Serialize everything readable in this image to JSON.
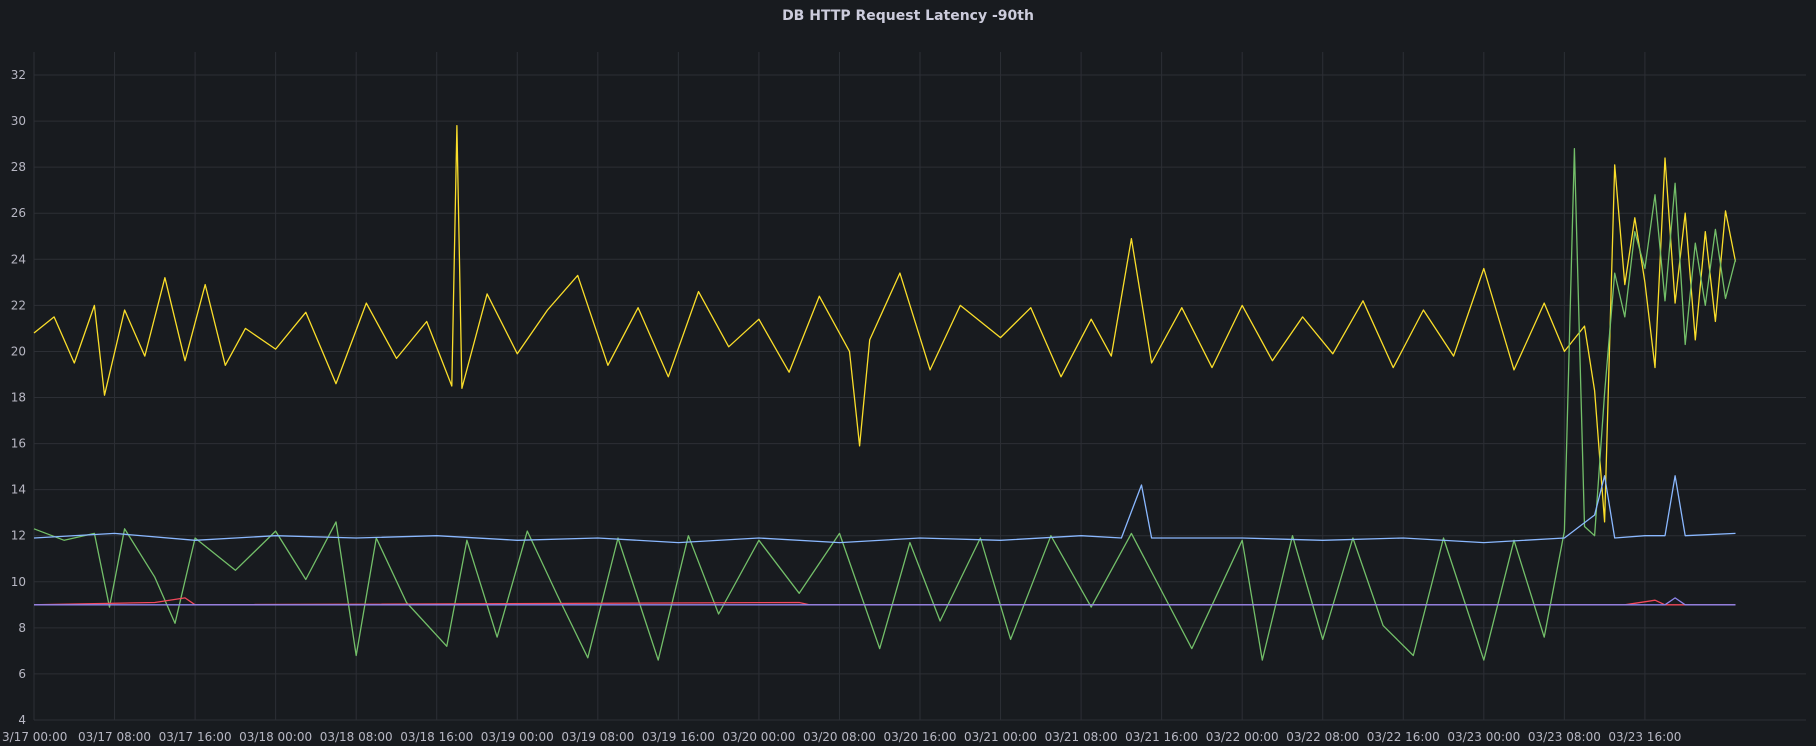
{
  "chart_data": {
    "type": "line",
    "title": "DB HTTP Request Latency -90th",
    "xlabel": "",
    "ylabel": "",
    "ylim": [
      4,
      33
    ],
    "yticks": [
      4,
      6,
      8,
      10,
      12,
      14,
      16,
      18,
      20,
      22,
      24,
      26,
      28,
      30,
      32
    ],
    "xlim": [
      "2024-03-17 00:00",
      "2024-03-24 08:00"
    ],
    "xticks": [
      {
        "t": "2024-03-17 00:00",
        "label": "3/17 00:00"
      },
      {
        "t": "2024-03-17 08:00",
        "label": "03/17 08:00"
      },
      {
        "t": "2024-03-17 16:00",
        "label": "03/17 16:00"
      },
      {
        "t": "2024-03-18 00:00",
        "label": "03/18 00:00"
      },
      {
        "t": "2024-03-18 08:00",
        "label": "03/18 08:00"
      },
      {
        "t": "2024-03-18 16:00",
        "label": "03/18 16:00"
      },
      {
        "t": "2024-03-19 00:00",
        "label": "03/19 00:00"
      },
      {
        "t": "2024-03-19 08:00",
        "label": "03/19 08:00"
      },
      {
        "t": "2024-03-19 16:00",
        "label": "03/19 16:00"
      },
      {
        "t": "2024-03-20 00:00",
        "label": "03/20 00:00"
      },
      {
        "t": "2024-03-20 08:00",
        "label": "03/20 08:00"
      },
      {
        "t": "2024-03-20 16:00",
        "label": "03/20 16:00"
      },
      {
        "t": "2024-03-21 00:00",
        "label": "03/21 00:00"
      },
      {
        "t": "2024-03-21 08:00",
        "label": "03/21 08:00"
      },
      {
        "t": "2024-03-21 16:00",
        "label": "03/21 16:00"
      },
      {
        "t": "2024-03-22 00:00",
        "label": "03/22 00:00"
      },
      {
        "t": "2024-03-22 08:00",
        "label": "03/22 08:00"
      },
      {
        "t": "2024-03-22 16:00",
        "label": "03/22 16:00"
      },
      {
        "t": "2024-03-23 00:00",
        "label": "03/23 00:00"
      },
      {
        "t": "2024-03-23 08:00",
        "label": "03/23 08:00"
      },
      {
        "t": "2024-03-23 16:00",
        "label": "03/23 16:00"
      }
    ],
    "grid": true,
    "legend": "none",
    "series": [
      {
        "color": "#fade2a",
        "points": [
          [
            "2024-03-17 00:00",
            20.8
          ],
          [
            "2024-03-17 02:00",
            21.5
          ],
          [
            "2024-03-17 04:00",
            19.5
          ],
          [
            "2024-03-17 06:00",
            22.0
          ],
          [
            "2024-03-17 07:00",
            18.1
          ],
          [
            "2024-03-17 09:00",
            21.8
          ],
          [
            "2024-03-17 11:00",
            19.8
          ],
          [
            "2024-03-17 13:00",
            23.2
          ],
          [
            "2024-03-17 15:00",
            19.6
          ],
          [
            "2024-03-17 17:00",
            22.9
          ],
          [
            "2024-03-17 19:00",
            19.4
          ],
          [
            "2024-03-17 21:00",
            21.0
          ],
          [
            "2024-03-18 00:00",
            20.1
          ],
          [
            "2024-03-18 03:00",
            21.7
          ],
          [
            "2024-03-18 06:00",
            18.6
          ],
          [
            "2024-03-18 09:00",
            22.1
          ],
          [
            "2024-03-18 12:00",
            19.7
          ],
          [
            "2024-03-18 15:00",
            21.3
          ],
          [
            "2024-03-18 17:30",
            18.5
          ],
          [
            "2024-03-18 18:00",
            29.8
          ],
          [
            "2024-03-18 18:30",
            18.4
          ],
          [
            "2024-03-18 21:00",
            22.5
          ],
          [
            "2024-03-19 00:00",
            19.9
          ],
          [
            "2024-03-19 03:00",
            21.8
          ],
          [
            "2024-03-19 06:00",
            23.3
          ],
          [
            "2024-03-19 09:00",
            19.4
          ],
          [
            "2024-03-19 12:00",
            21.9
          ],
          [
            "2024-03-19 15:00",
            18.9
          ],
          [
            "2024-03-19 18:00",
            22.6
          ],
          [
            "2024-03-19 21:00",
            20.2
          ],
          [
            "2024-03-20 00:00",
            21.4
          ],
          [
            "2024-03-20 03:00",
            19.1
          ],
          [
            "2024-03-20 06:00",
            22.4
          ],
          [
            "2024-03-20 09:00",
            20.0
          ],
          [
            "2024-03-20 10:00",
            15.9
          ],
          [
            "2024-03-20 11:00",
            20.5
          ],
          [
            "2024-03-20 14:00",
            23.4
          ],
          [
            "2024-03-20 17:00",
            19.2
          ],
          [
            "2024-03-20 20:00",
            22.0
          ],
          [
            "2024-03-21 00:00",
            20.6
          ],
          [
            "2024-03-21 03:00",
            21.9
          ],
          [
            "2024-03-21 06:00",
            18.9
          ],
          [
            "2024-03-21 09:00",
            21.4
          ],
          [
            "2024-03-21 11:00",
            19.8
          ],
          [
            "2024-03-21 13:00",
            24.9
          ],
          [
            "2024-03-21 15:00",
            19.5
          ],
          [
            "2024-03-21 18:00",
            21.9
          ],
          [
            "2024-03-21 21:00",
            19.3
          ],
          [
            "2024-03-22 00:00",
            22.0
          ],
          [
            "2024-03-22 03:00",
            19.6
          ],
          [
            "2024-03-22 06:00",
            21.5
          ],
          [
            "2024-03-22 09:00",
            19.9
          ],
          [
            "2024-03-22 12:00",
            22.2
          ],
          [
            "2024-03-22 15:00",
            19.3
          ],
          [
            "2024-03-22 18:00",
            21.8
          ],
          [
            "2024-03-22 21:00",
            19.8
          ],
          [
            "2024-03-23 00:00",
            23.6
          ],
          [
            "2024-03-23 03:00",
            19.2
          ],
          [
            "2024-03-23 06:00",
            22.1
          ],
          [
            "2024-03-23 08:00",
            20.0
          ],
          [
            "2024-03-23 10:00",
            21.1
          ],
          [
            "2024-03-23 11:00",
            18.3
          ],
          [
            "2024-03-23 12:00",
            12.6
          ],
          [
            "2024-03-23 13:00",
            28.1
          ],
          [
            "2024-03-23 14:00",
            22.9
          ],
          [
            "2024-03-23 15:00",
            25.8
          ],
          [
            "2024-03-23 16:00",
            23.0
          ],
          [
            "2024-03-23 17:00",
            19.3
          ],
          [
            "2024-03-23 18:00",
            28.4
          ],
          [
            "2024-03-23 19:00",
            22.1
          ],
          [
            "2024-03-23 20:00",
            26.0
          ],
          [
            "2024-03-23 21:00",
            20.5
          ],
          [
            "2024-03-23 22:00",
            25.2
          ],
          [
            "2024-03-23 23:00",
            21.3
          ],
          [
            "2024-03-24 00:00",
            26.1
          ],
          [
            "2024-03-24 01:00",
            23.9
          ]
        ]
      },
      {
        "color": "#73bf69",
        "points": [
          [
            "2024-03-17 00:00",
            12.3
          ],
          [
            "2024-03-17 03:00",
            11.8
          ],
          [
            "2024-03-17 06:00",
            12.1
          ],
          [
            "2024-03-17 07:30",
            8.9
          ],
          [
            "2024-03-17 09:00",
            12.3
          ],
          [
            "2024-03-17 12:00",
            10.2
          ],
          [
            "2024-03-17 14:00",
            8.2
          ],
          [
            "2024-03-17 16:00",
            11.9
          ],
          [
            "2024-03-17 20:00",
            10.5
          ],
          [
            "2024-03-18 00:00",
            12.2
          ],
          [
            "2024-03-18 03:00",
            10.1
          ],
          [
            "2024-03-18 06:00",
            12.6
          ],
          [
            "2024-03-18 08:00",
            6.8
          ],
          [
            "2024-03-18 10:00",
            11.9
          ],
          [
            "2024-03-18 13:00",
            9.1
          ],
          [
            "2024-03-18 17:00",
            7.2
          ],
          [
            "2024-03-18 19:00",
            11.8
          ],
          [
            "2024-03-18 22:00",
            7.6
          ],
          [
            "2024-03-19 01:00",
            12.2
          ],
          [
            "2024-03-19 04:00",
            9.4
          ],
          [
            "2024-03-19 07:00",
            6.7
          ],
          [
            "2024-03-19 10:00",
            11.9
          ],
          [
            "2024-03-19 14:00",
            6.6
          ],
          [
            "2024-03-19 17:00",
            12.0
          ],
          [
            "2024-03-19 20:00",
            8.6
          ],
          [
            "2024-03-20 00:00",
            11.8
          ],
          [
            "2024-03-20 04:00",
            9.5
          ],
          [
            "2024-03-20 08:00",
            12.1
          ],
          [
            "2024-03-20 12:00",
            7.1
          ],
          [
            "2024-03-20 15:00",
            11.7
          ],
          [
            "2024-03-20 18:00",
            8.3
          ],
          [
            "2024-03-20 22:00",
            11.9
          ],
          [
            "2024-03-21 01:00",
            7.5
          ],
          [
            "2024-03-21 05:00",
            12.0
          ],
          [
            "2024-03-21 09:00",
            8.9
          ],
          [
            "2024-03-21 13:00",
            12.1
          ],
          [
            "2024-03-21 16:00",
            9.6
          ],
          [
            "2024-03-21 19:00",
            7.1
          ],
          [
            "2024-03-22 00:00",
            11.8
          ],
          [
            "2024-03-22 02:00",
            6.6
          ],
          [
            "2024-03-22 05:00",
            12.0
          ],
          [
            "2024-03-22 08:00",
            7.5
          ],
          [
            "2024-03-22 11:00",
            11.9
          ],
          [
            "2024-03-22 14:00",
            8.1
          ],
          [
            "2024-03-22 17:00",
            6.8
          ],
          [
            "2024-03-22 20:00",
            11.9
          ],
          [
            "2024-03-23 00:00",
            6.6
          ],
          [
            "2024-03-23 03:00",
            11.8
          ],
          [
            "2024-03-23 06:00",
            7.6
          ],
          [
            "2024-03-23 08:00",
            12.2
          ],
          [
            "2024-03-23 09:00",
            28.8
          ],
          [
            "2024-03-23 10:00",
            12.4
          ],
          [
            "2024-03-23 11:00",
            12.0
          ],
          [
            "2024-03-23 12:00",
            18.2
          ],
          [
            "2024-03-23 13:00",
            23.4
          ],
          [
            "2024-03-23 14:00",
            21.5
          ],
          [
            "2024-03-23 15:00",
            25.2
          ],
          [
            "2024-03-23 16:00",
            23.6
          ],
          [
            "2024-03-23 17:00",
            26.8
          ],
          [
            "2024-03-23 18:00",
            22.2
          ],
          [
            "2024-03-23 19:00",
            27.3
          ],
          [
            "2024-03-23 20:00",
            20.3
          ],
          [
            "2024-03-23 21:00",
            24.7
          ],
          [
            "2024-03-23 22:00",
            22.0
          ],
          [
            "2024-03-23 23:00",
            25.3
          ],
          [
            "2024-03-24 00:00",
            22.3
          ],
          [
            "2024-03-24 01:00",
            24.0
          ]
        ]
      },
      {
        "color": "#8ab8ff",
        "points": [
          [
            "2024-03-17 00:00",
            11.9
          ],
          [
            "2024-03-17 08:00",
            12.1
          ],
          [
            "2024-03-17 16:00",
            11.8
          ],
          [
            "2024-03-18 00:00",
            12.0
          ],
          [
            "2024-03-18 08:00",
            11.9
          ],
          [
            "2024-03-18 16:00",
            12.0
          ],
          [
            "2024-03-19 00:00",
            11.8
          ],
          [
            "2024-03-19 08:00",
            11.9
          ],
          [
            "2024-03-19 16:00",
            11.7
          ],
          [
            "2024-03-20 00:00",
            11.9
          ],
          [
            "2024-03-20 08:00",
            11.7
          ],
          [
            "2024-03-20 16:00",
            11.9
          ],
          [
            "2024-03-21 00:00",
            11.8
          ],
          [
            "2024-03-21 08:00",
            12.0
          ],
          [
            "2024-03-21 12:00",
            11.9
          ],
          [
            "2024-03-21 14:00",
            14.2
          ],
          [
            "2024-03-21 15:00",
            11.9
          ],
          [
            "2024-03-22 00:00",
            11.9
          ],
          [
            "2024-03-22 08:00",
            11.8
          ],
          [
            "2024-03-22 16:00",
            11.9
          ],
          [
            "2024-03-23 00:00",
            11.7
          ],
          [
            "2024-03-23 08:00",
            11.9
          ],
          [
            "2024-03-23 11:00",
            12.9
          ],
          [
            "2024-03-23 12:00",
            14.6
          ],
          [
            "2024-03-23 13:00",
            11.9
          ],
          [
            "2024-03-23 16:00",
            12.0
          ],
          [
            "2024-03-23 18:00",
            12.0
          ],
          [
            "2024-03-23 19:00",
            14.6
          ],
          [
            "2024-03-23 20:00",
            12.0
          ],
          [
            "2024-03-24 01:00",
            12.1
          ]
        ]
      },
      {
        "color": "#f2495c",
        "points": [
          [
            "2024-03-17 00:00",
            9.0
          ],
          [
            "2024-03-17 12:00",
            9.1
          ],
          [
            "2024-03-17 15:00",
            9.3
          ],
          [
            "2024-03-17 16:00",
            9.0
          ],
          [
            "2024-03-20 04:00",
            9.1
          ],
          [
            "2024-03-20 05:00",
            9.0
          ],
          [
            "2024-03-23 14:00",
            9.0
          ],
          [
            "2024-03-23 17:00",
            9.2
          ],
          [
            "2024-03-23 18:00",
            9.0
          ],
          [
            "2024-03-24 01:00",
            9.0
          ]
        ]
      },
      {
        "color": "#8f86ec",
        "points": [
          [
            "2024-03-17 00:00",
            9.0
          ],
          [
            "2024-03-23 18:00",
            9.0
          ],
          [
            "2024-03-23 19:00",
            9.3
          ],
          [
            "2024-03-23 20:00",
            9.0
          ],
          [
            "2024-03-24 01:00",
            9.0
          ]
        ]
      }
    ]
  }
}
